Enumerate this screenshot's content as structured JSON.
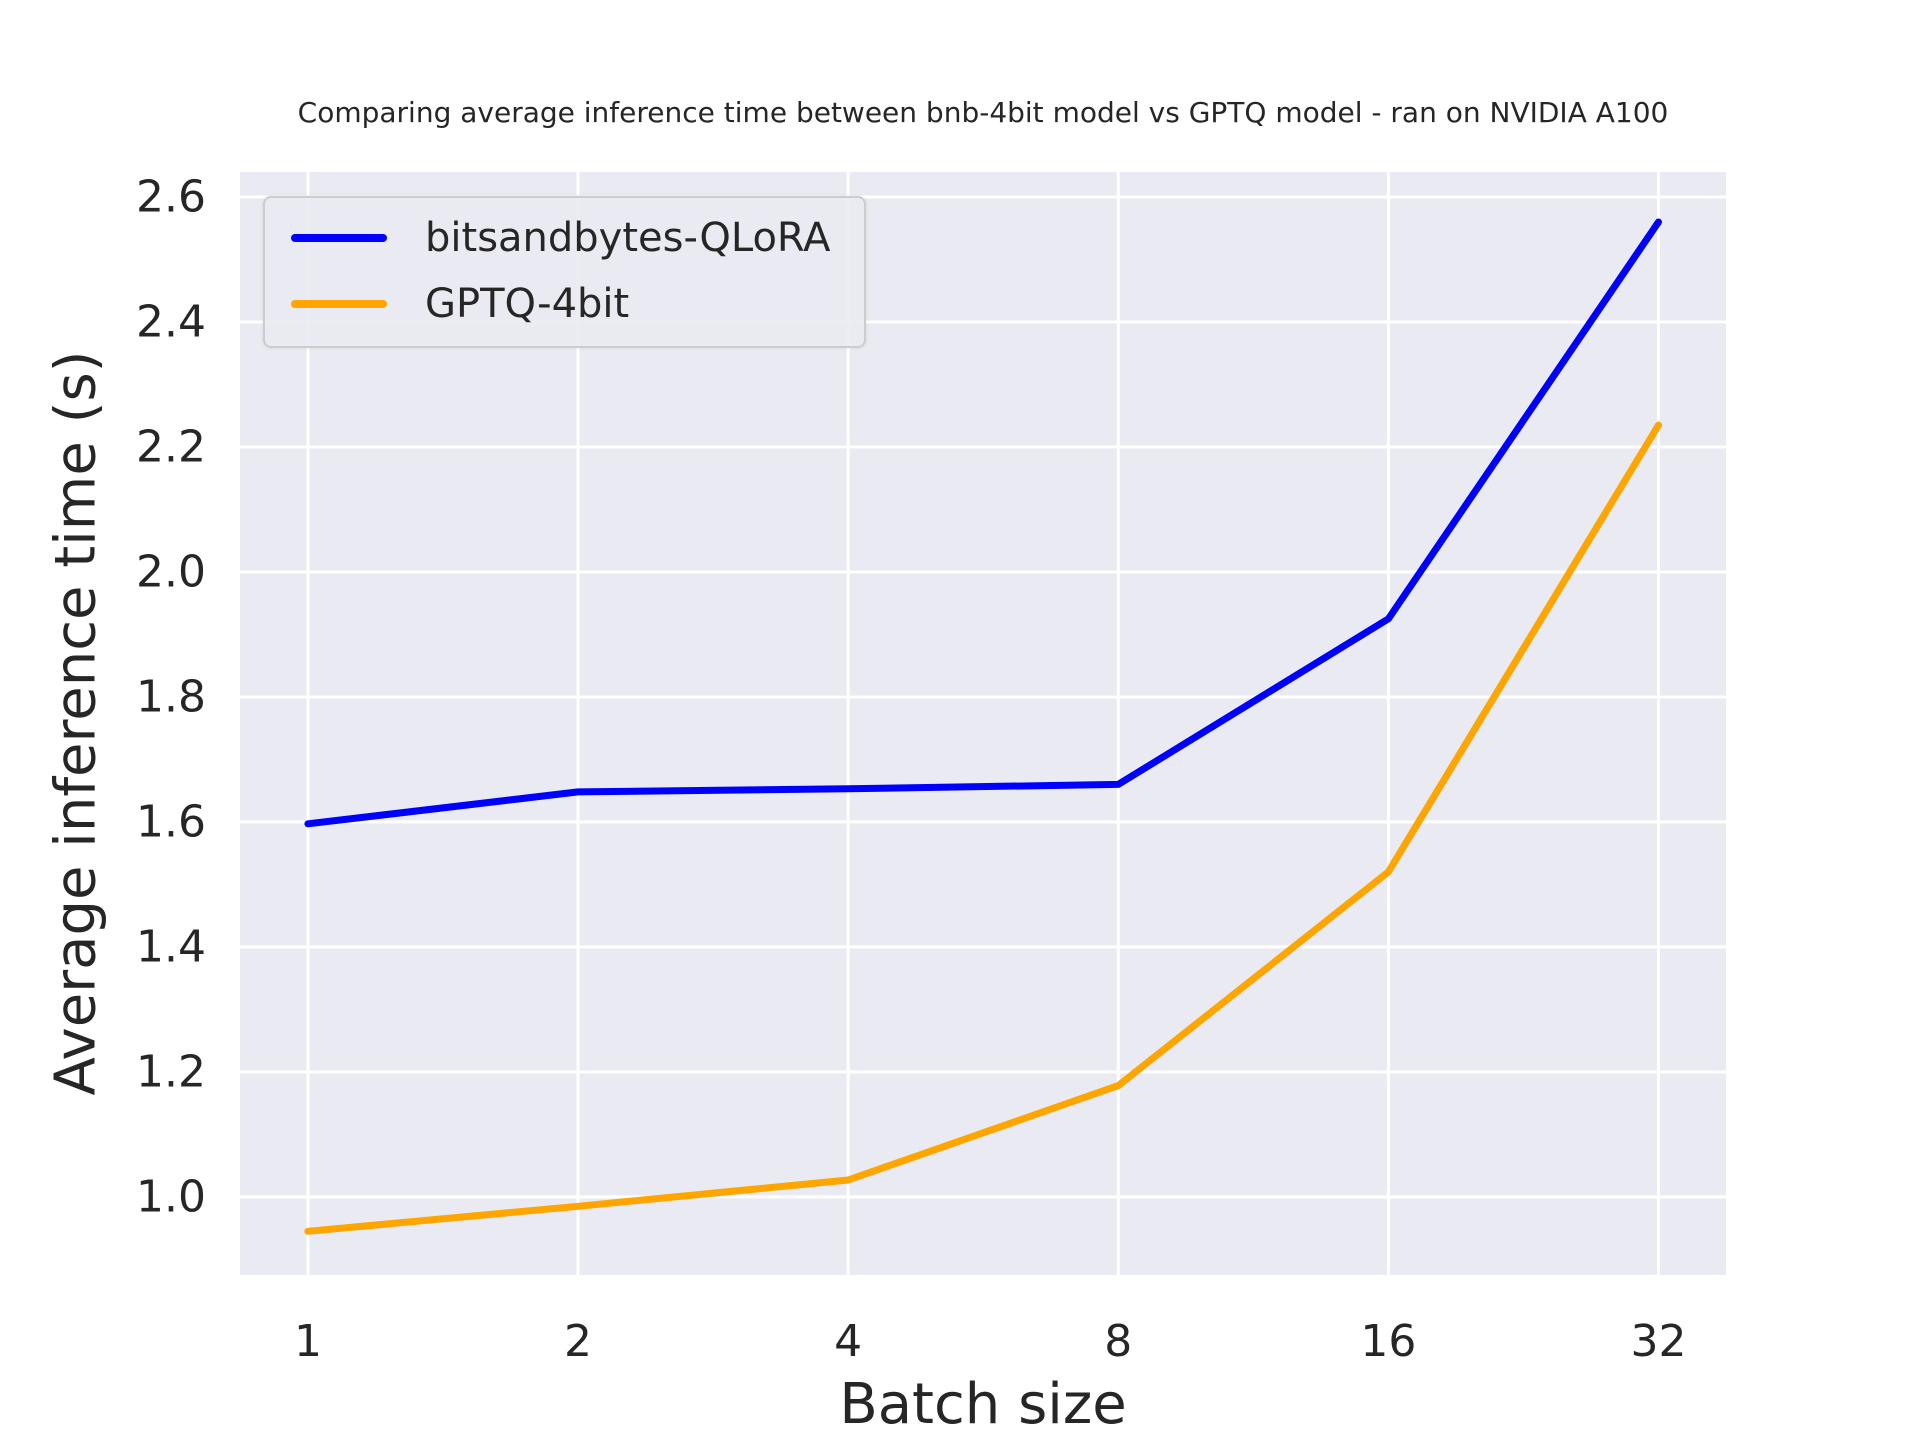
{
  "chart_data": {
    "type": "line",
    "title": "Comparing average inference time between bnb-4bit model vs GPTQ model - ran on NVIDIA A100",
    "xlabel": "Batch size",
    "ylabel": "Average inference time (s)",
    "x": [
      1,
      2,
      4,
      8,
      16,
      32
    ],
    "x_scale": "log2",
    "series": [
      {
        "name": "bitsandbytes-QLoRA",
        "color": "#0000ff",
        "values": [
          1.597,
          1.648,
          1.653,
          1.66,
          1.925,
          2.56
        ]
      },
      {
        "name": "GPTQ-4bit",
        "color": "#ffa500",
        "values": [
          0.945,
          0.985,
          1.027,
          1.178,
          1.52,
          2.235
        ]
      }
    ],
    "xticks": {
      "values": [
        1,
        2,
        4,
        8,
        16,
        32
      ],
      "labels": [
        "1",
        "2",
        "4",
        "8",
        "16",
        "32"
      ]
    },
    "yticks": {
      "values": [
        1.0,
        1.2,
        1.4,
        1.6,
        1.8,
        2.0,
        2.2,
        2.4,
        2.6
      ],
      "labels": [
        "1.0",
        "1.2",
        "1.4",
        "1.6",
        "1.8",
        "2.0",
        "2.2",
        "2.4",
        "2.6"
      ]
    },
    "xlim": [
      0.84,
      38.05
    ],
    "ylim": [
      0.875,
      2.64
    ],
    "grid": true,
    "legend_position": "upper-left",
    "colors": {
      "axes_background": "#eaeaf2",
      "grid": "#ffffff",
      "text": "#262626",
      "legend_edge": "#cccccc"
    },
    "line_width": 7,
    "grid_line_width": 3
  }
}
